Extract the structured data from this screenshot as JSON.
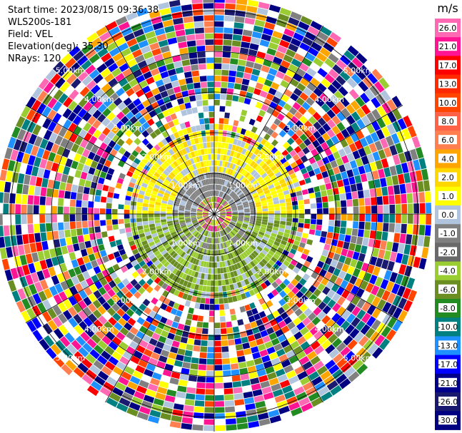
{
  "info": {
    "start_time": "Start time: 2023/08/15 09:36:38",
    "instrument": "WLS200s-181",
    "field": "Field: VEL",
    "elevation": "Elevation(deg): 35.30",
    "nrays": "NRays: 120"
  },
  "chart_data": {
    "type": "heatmap",
    "projection": "polar-ppi",
    "field": "VEL",
    "units": "m/s",
    "n_rays": 120,
    "range_rings_km": [
      1.0,
      2.0,
      3.0,
      4.0,
      5.0
    ],
    "ring_labels": [
      "1.00km",
      "2.00km",
      "3.00km",
      "4.00km",
      "5.00km"
    ],
    "colorbar": {
      "unit_label": "m/s",
      "tick_labels": [
        "26.0",
        "21.0",
        "17.0",
        "13.0",
        "10.0",
        "8.0",
        "6.0",
        "4.0",
        "2.0",
        "1.0",
        "0.0",
        "-1.0",
        "-2.0",
        "-4.0",
        "-6.0",
        "-8.0",
        "-10.0",
        "-13.0",
        "-17.0",
        "-21.0",
        "-26.0",
        "-30.0"
      ],
      "colors": [
        "#ff69b4",
        "#ff1493",
        "#ff0000",
        "#ff2a00",
        "#ff4500",
        "#ff6347",
        "#ff7f50",
        "#ffa500",
        "#ffd700",
        "#ffff00",
        "#b0c4de",
        "#808080",
        "#696969",
        "#9acd32",
        "#6b8e23",
        "#228b22",
        "#008080",
        "#1e90ff",
        "#0000ff",
        "#00008b",
        "#191970",
        "#000080"
      ]
    }
  }
}
